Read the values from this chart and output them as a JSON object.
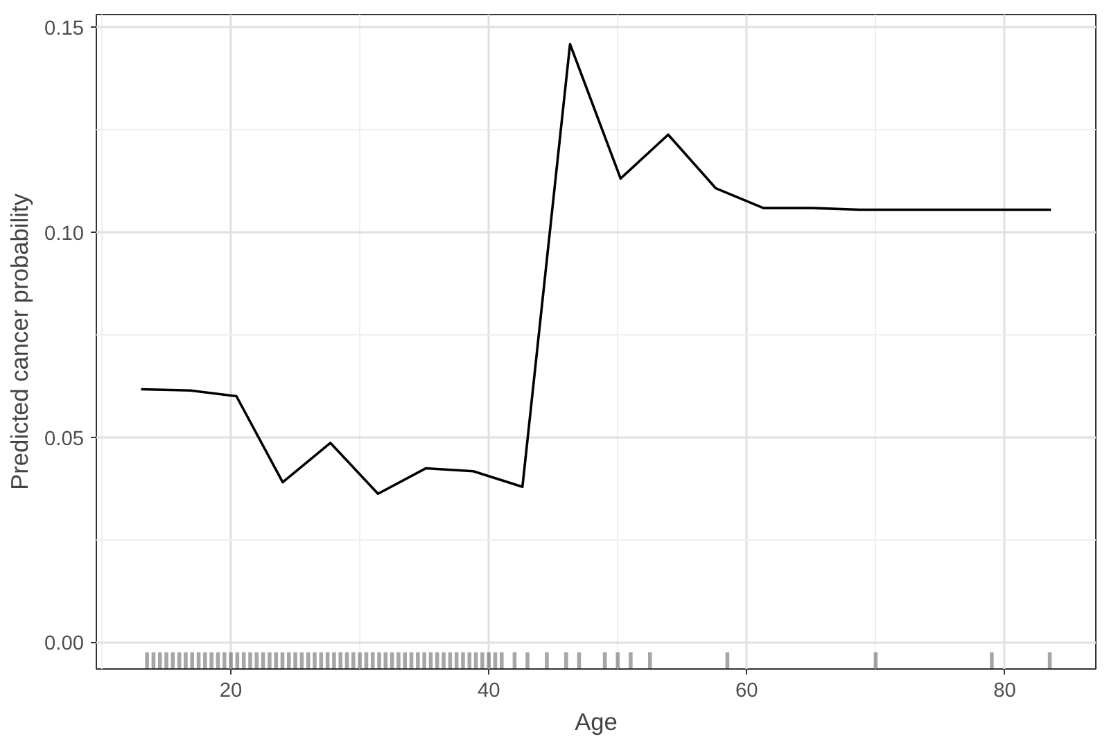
{
  "chart_data": {
    "type": "line",
    "xlabel": "Age",
    "ylabel": "Predicted cancer probability",
    "xlim": [
      9.57,
      87.07
    ],
    "ylim": [
      -0.00655,
      0.1531
    ],
    "xticks": [
      20,
      40,
      60,
      80
    ],
    "yticks": [
      {
        "value": 0,
        "label": "0.00"
      },
      {
        "value": 0.05,
        "label": "0.05"
      },
      {
        "value": 0.1,
        "label": "0.10"
      },
      {
        "value": 0.15,
        "label": "0.15"
      }
    ],
    "grid": true,
    "marker": "none",
    "line_style": "solid",
    "series": [
      {
        "color": "#000000",
        "x": [
          13.04,
          16.85,
          20.43,
          24.02,
          27.72,
          31.41,
          35.11,
          38.8,
          42.61,
          46.3,
          50.22,
          53.91,
          57.61,
          61.3,
          65.11,
          68.8,
          83.59
        ],
        "values": [
          0.0617,
          0.0614,
          0.06,
          0.039,
          0.0486,
          0.0362,
          0.0424,
          0.0417,
          0.0379,
          0.1459,
          0.1131,
          0.1238,
          0.1107,
          0.1059,
          0.1059,
          0.1055,
          0.1055
        ]
      },
      {
        "type": "bar",
        "color": "#000000",
        "x": [
          13.5,
          14,
          14.5,
          15,
          15.5,
          16,
          16.5,
          17,
          17.5,
          18,
          18.5,
          19,
          19.5,
          20,
          20.5,
          21,
          21.5,
          22,
          22.5,
          23,
          23.5,
          24,
          24.5,
          25,
          25.5,
          26,
          26.5,
          27,
          27.5,
          28,
          28.5,
          29,
          29.5,
          30,
          30.5,
          31,
          31.5,
          32,
          32.5,
          33,
          33.5,
          34,
          34.5,
          35,
          35.5,
          36,
          36.5,
          37,
          37.5,
          38,
          38.5,
          39,
          39.5,
          40,
          40.5,
          41,
          42,
          43,
          44.5,
          46,
          47,
          49,
          50,
          51,
          52.5,
          58.5,
          70,
          79,
          83.5
        ],
        "base": [
          -0.0065,
          -0.0065,
          -0.0065,
          -0.0065,
          -0.0065,
          -0.0065,
          -0.0065,
          -0.0065,
          -0.0065,
          -0.0065,
          -0.0065,
          -0.0065,
          -0.0065,
          -0.0065,
          -0.0065,
          -0.0065,
          -0.0065,
          -0.0065,
          -0.0065,
          -0.0065,
          -0.0065,
          -0.0065,
          -0.0065,
          -0.0065,
          -0.0065,
          -0.0065,
          -0.0065,
          -0.0065,
          -0.0065,
          -0.0065,
          -0.0065,
          -0.0065,
          -0.0065,
          -0.0065,
          -0.0065,
          -0.0065,
          -0.0065,
          -0.0065,
          -0.0065,
          -0.0065,
          -0.0065,
          -0.0065,
          -0.0065,
          -0.0065,
          -0.0065,
          -0.0065,
          -0.0065,
          -0.0065,
          -0.0065,
          -0.0065,
          -0.0065,
          -0.0065,
          -0.0065,
          -0.0065,
          -0.0065,
          -0.0065,
          -0.0065,
          -0.0065,
          -0.0065,
          -0.0065,
          -0.0065,
          -0.0065,
          -0.0065,
          -0.0065,
          -0.0065,
          -0.0065,
          -0.0065,
          -0.0065,
          -0.0065
        ],
        "values": [
          0.004,
          0.004,
          0.004,
          0.004,
          0.004,
          0.004,
          0.004,
          0.004,
          0.004,
          0.004,
          0.004,
          0.004,
          0.004,
          0.004,
          0.004,
          0.004,
          0.004,
          0.004,
          0.004,
          0.004,
          0.004,
          0.004,
          0.004,
          0.004,
          0.004,
          0.004,
          0.004,
          0.004,
          0.004,
          0.004,
          0.004,
          0.004,
          0.004,
          0.004,
          0.004,
          0.004,
          0.004,
          0.004,
          0.004,
          0.004,
          0.004,
          0.004,
          0.004,
          0.004,
          0.004,
          0.004,
          0.004,
          0.004,
          0.004,
          0.004,
          0.004,
          0.004,
          0.004,
          0.004,
          0.004,
          0.004,
          0.004,
          0.004,
          0.004,
          0.004,
          0.004,
          0.004,
          0.004,
          0.004,
          0.004,
          0.004,
          0.004,
          0.004,
          0.004
        ]
      }
    ]
  }
}
